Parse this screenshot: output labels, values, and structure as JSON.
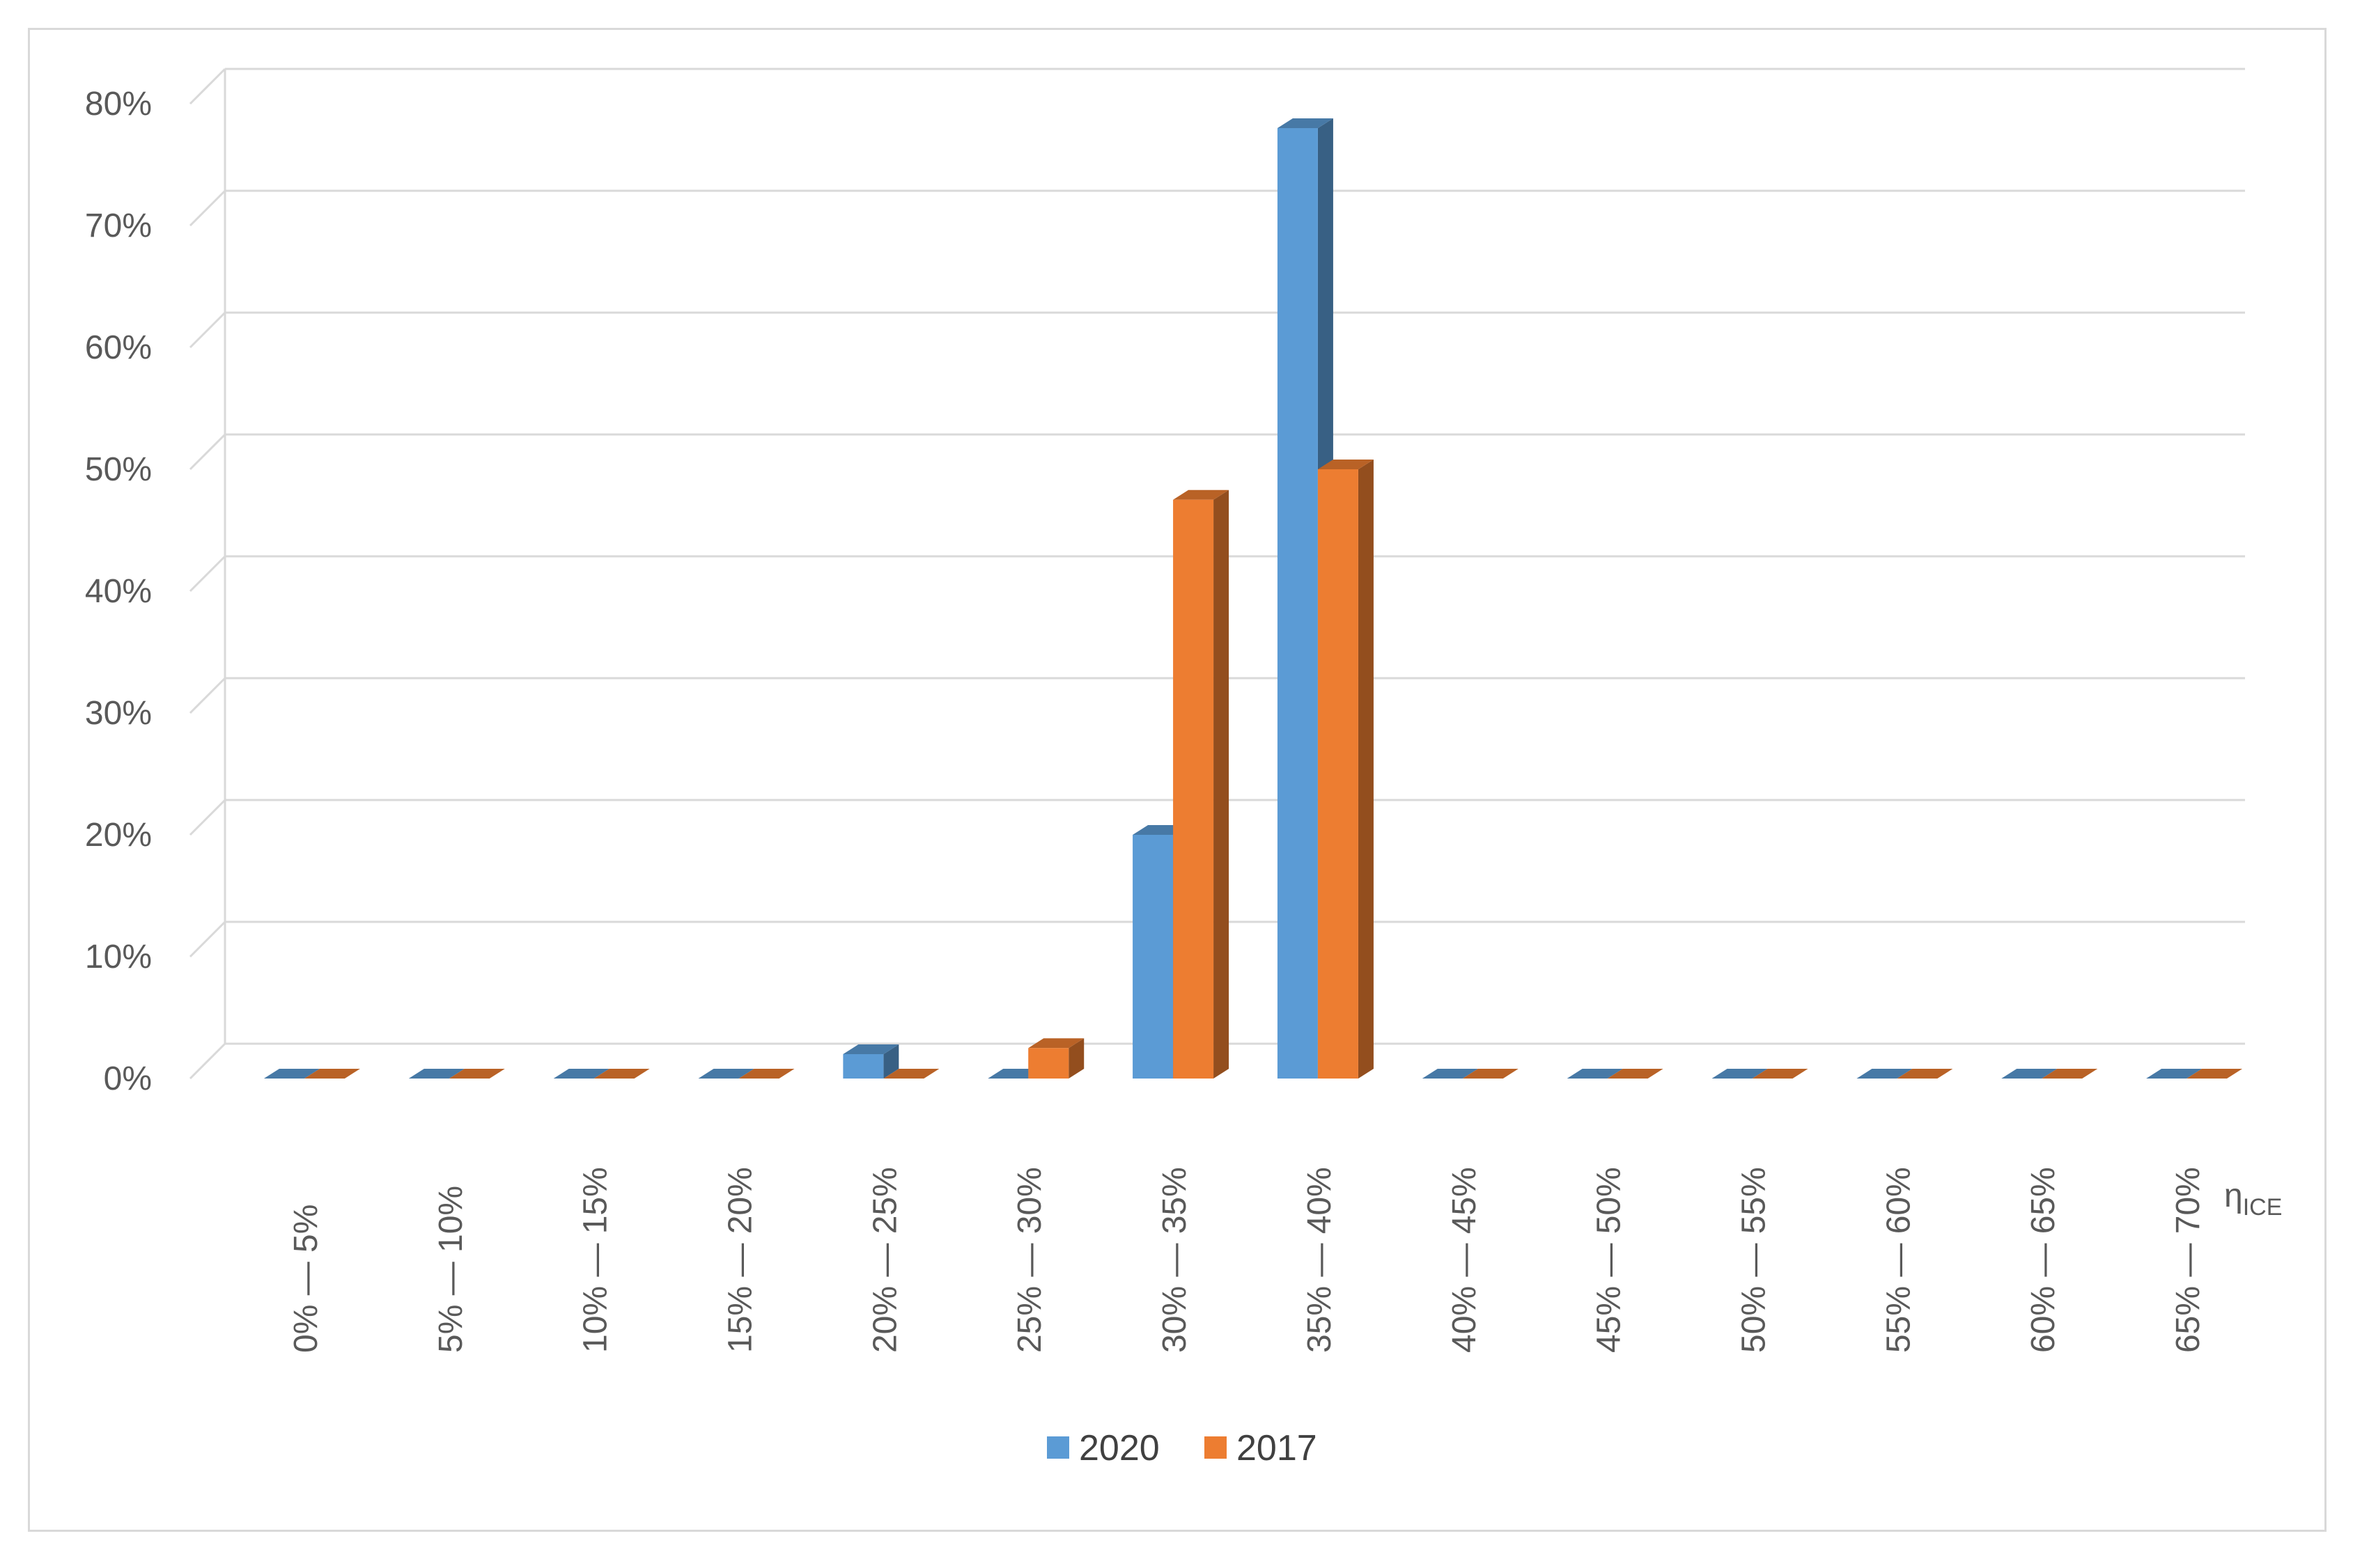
{
  "chart_data": {
    "type": "bar",
    "title": "",
    "xlabel": "η",
    "xlabel_subscript": "ICE",
    "ylabel": "",
    "ylim": [
      0,
      80
    ],
    "ytick_step": 10,
    "yticks": [
      "0%",
      "10%",
      "20%",
      "30%",
      "40%",
      "50%",
      "60%",
      "70%",
      "80%"
    ],
    "grid": true,
    "legend_position": "bottom",
    "categories": [
      "0% — 5%",
      "5% — 10%",
      "10% — 15%",
      "15% — 20%",
      "20% — 25%",
      "25% — 30%",
      "30% — 35%",
      "35% — 40%",
      "40% — 45%",
      "45% — 50%",
      "50% — 55%",
      "55% — 60%",
      "60% — 65%",
      "65% — 70%"
    ],
    "series": [
      {
        "name": "2020",
        "color": "#5b9bd5",
        "values": [
          0,
          0,
          0,
          0,
          2,
          0,
          20,
          78,
          0,
          0,
          0,
          0,
          0,
          0
        ]
      },
      {
        "name": "2017",
        "color": "#ed7d31",
        "values": [
          0,
          0,
          0,
          0,
          0,
          2.5,
          47.5,
          50,
          0,
          0,
          0,
          0,
          0,
          0
        ]
      }
    ]
  }
}
